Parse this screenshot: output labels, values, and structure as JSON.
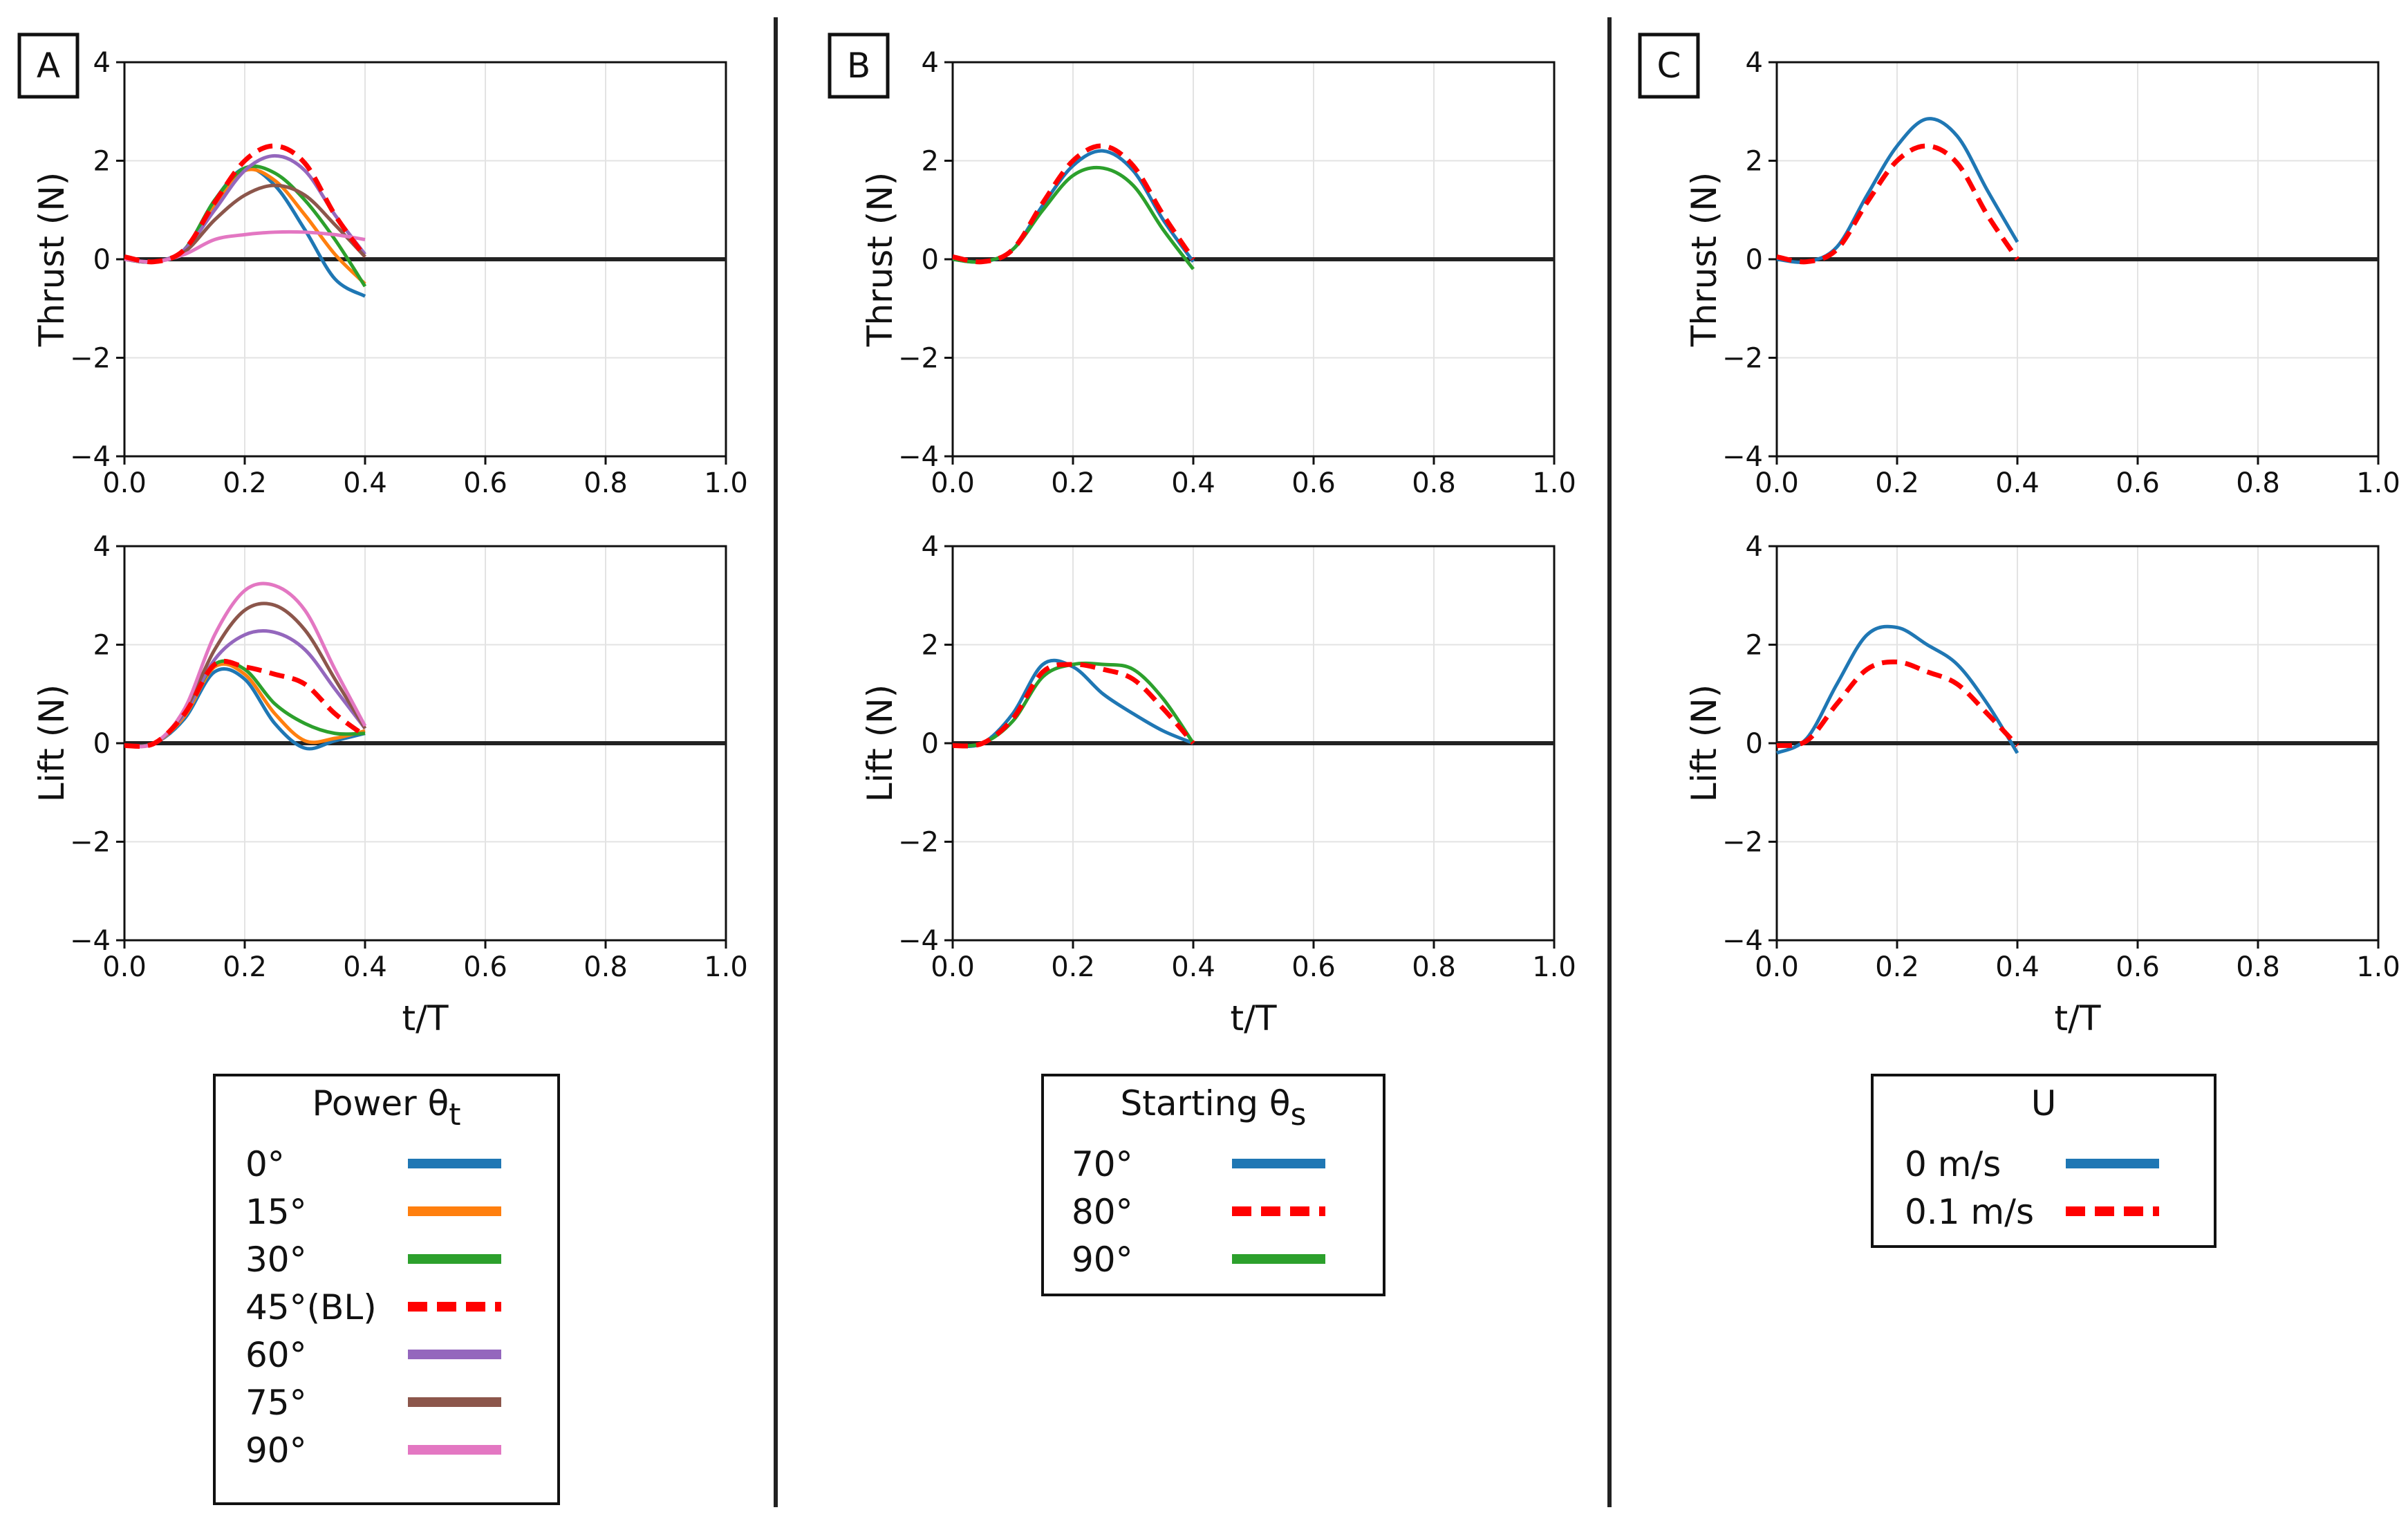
{
  "colors": {
    "blue": "#1f77b4",
    "orange": "#ff7f0e",
    "green": "#2ca02c",
    "red": "#ff0000",
    "purple": "#9467bd",
    "brown": "#8c564b",
    "pink": "#e377c2",
    "zero_line": "#222222",
    "grid": "#e3e3e3"
  },
  "chart_data": [
    {
      "panel": "A",
      "type": "line",
      "ylabel": "Thrust (N)",
      "xlabel": "",
      "xlim": [
        0,
        1
      ],
      "ylim": [
        -4,
        4
      ],
      "xticks": [
        "0.0",
        "0.2",
        "0.4",
        "0.6",
        "0.8",
        "1.0"
      ],
      "yticks": [
        "4",
        "2",
        "0",
        "−2",
        "−4"
      ],
      "series": [
        {
          "name": "0°",
          "color": "#1f77b4",
          "dashed": false,
          "x": [
            0,
            0.05,
            0.1,
            0.15,
            0.2,
            0.25,
            0.3,
            0.35,
            0.4
          ],
          "y": [
            0,
            -0.05,
            0.2,
            1.2,
            1.85,
            1.5,
            0.6,
            -0.4,
            -0.75
          ]
        },
        {
          "name": "15°",
          "color": "#ff7f0e",
          "dashed": false,
          "x": [
            0,
            0.05,
            0.1,
            0.15,
            0.2,
            0.25,
            0.3,
            0.35,
            0.4
          ],
          "y": [
            0,
            -0.05,
            0.2,
            1.1,
            1.8,
            1.6,
            0.9,
            0.1,
            -0.5
          ]
        },
        {
          "name": "30°",
          "color": "#2ca02c",
          "dashed": false,
          "x": [
            0,
            0.05,
            0.1,
            0.15,
            0.2,
            0.25,
            0.3,
            0.35,
            0.4
          ],
          "y": [
            0,
            -0.05,
            0.2,
            1.2,
            1.85,
            1.75,
            1.2,
            0.4,
            -0.55
          ]
        },
        {
          "name": "45°(BL)",
          "color": "#ff0000",
          "dashed": true,
          "x": [
            0,
            0.05,
            0.1,
            0.15,
            0.2,
            0.25,
            0.3,
            0.35,
            0.4
          ],
          "y": [
            0.05,
            -0.05,
            0.2,
            1.15,
            2.0,
            2.3,
            1.95,
            0.9,
            0.05
          ]
        },
        {
          "name": "60°",
          "color": "#9467bd",
          "dashed": false,
          "x": [
            0,
            0.05,
            0.1,
            0.15,
            0.2,
            0.25,
            0.3,
            0.35,
            0.4
          ],
          "y": [
            0,
            -0.05,
            0.2,
            1.0,
            1.8,
            2.1,
            1.8,
            0.9,
            0.1
          ]
        },
        {
          "name": "75°",
          "color": "#8c564b",
          "dashed": false,
          "x": [
            0,
            0.05,
            0.1,
            0.15,
            0.2,
            0.25,
            0.3,
            0.35,
            0.4
          ],
          "y": [
            0,
            -0.05,
            0.15,
            0.8,
            1.3,
            1.5,
            1.3,
            0.7,
            0.05
          ]
        },
        {
          "name": "90°",
          "color": "#e377c2",
          "dashed": false,
          "x": [
            0,
            0.05,
            0.1,
            0.15,
            0.2,
            0.25,
            0.3,
            0.35,
            0.4
          ],
          "y": [
            0,
            -0.05,
            0.1,
            0.4,
            0.5,
            0.55,
            0.55,
            0.5,
            0.4
          ]
        }
      ]
    },
    {
      "panel": "A",
      "type": "line",
      "ylabel": "Lift (N)",
      "xlabel": "t/T",
      "xlim": [
        0,
        1
      ],
      "ylim": [
        -4,
        4
      ],
      "xticks": [
        "0.0",
        "0.2",
        "0.4",
        "0.6",
        "0.8",
        "1.0"
      ],
      "yticks": [
        "4",
        "2",
        "0",
        "−2",
        "−4"
      ],
      "series": [
        {
          "name": "0°",
          "color": "#1f77b4",
          "dashed": false,
          "x": [
            0,
            0.05,
            0.1,
            0.15,
            0.2,
            0.25,
            0.3,
            0.35,
            0.4
          ],
          "y": [
            -0.05,
            0,
            0.5,
            1.45,
            1.3,
            0.4,
            -0.1,
            0.05,
            0.2
          ]
        },
        {
          "name": "15°",
          "color": "#ff7f0e",
          "dashed": false,
          "x": [
            0,
            0.05,
            0.1,
            0.15,
            0.2,
            0.25,
            0.3,
            0.35,
            0.4
          ],
          "y": [
            -0.05,
            0,
            0.55,
            1.55,
            1.4,
            0.6,
            0.05,
            0.1,
            0.25
          ]
        },
        {
          "name": "30°",
          "color": "#2ca02c",
          "dashed": false,
          "x": [
            0,
            0.05,
            0.1,
            0.15,
            0.2,
            0.25,
            0.3,
            0.35,
            0.4
          ],
          "y": [
            -0.05,
            0,
            0.6,
            1.6,
            1.5,
            0.8,
            0.4,
            0.2,
            0.2
          ]
        },
        {
          "name": "45°(BL)",
          "color": "#ff0000",
          "dashed": true,
          "x": [
            0,
            0.05,
            0.1,
            0.15,
            0.2,
            0.25,
            0.3,
            0.35,
            0.4
          ],
          "y": [
            -0.05,
            0,
            0.6,
            1.6,
            1.55,
            1.4,
            1.2,
            0.6,
            0.15
          ]
        },
        {
          "name": "60°",
          "color": "#9467bd",
          "dashed": false,
          "x": [
            0,
            0.05,
            0.1,
            0.15,
            0.2,
            0.25,
            0.3,
            0.35,
            0.4
          ],
          "y": [
            -0.05,
            0,
            0.6,
            1.7,
            2.2,
            2.25,
            1.9,
            1.1,
            0.3
          ]
        },
        {
          "name": "75°",
          "color": "#8c564b",
          "dashed": false,
          "x": [
            0,
            0.05,
            0.1,
            0.15,
            0.2,
            0.25,
            0.3,
            0.35,
            0.4
          ],
          "y": [
            -0.05,
            0,
            0.65,
            1.9,
            2.7,
            2.8,
            2.3,
            1.3,
            0.3
          ]
        },
        {
          "name": "90°",
          "color": "#e377c2",
          "dashed": false,
          "x": [
            0,
            0.05,
            0.1,
            0.15,
            0.2,
            0.25,
            0.3,
            0.35,
            0.4
          ],
          "y": [
            -0.05,
            0,
            0.7,
            2.2,
            3.1,
            3.2,
            2.7,
            1.5,
            0.35
          ]
        }
      ]
    },
    {
      "panel": "B",
      "type": "line",
      "ylabel": "Thrust (N)",
      "xlabel": "",
      "xlim": [
        0,
        1
      ],
      "ylim": [
        -4,
        4
      ],
      "xticks": [
        "0.0",
        "0.2",
        "0.4",
        "0.6",
        "0.8",
        "1.0"
      ],
      "yticks": [
        "4",
        "2",
        "0",
        "−2",
        "−4"
      ],
      "series": [
        {
          "name": "70°",
          "color": "#1f77b4",
          "dashed": false,
          "x": [
            0,
            0.05,
            0.1,
            0.15,
            0.2,
            0.25,
            0.3,
            0.35,
            0.4
          ],
          "y": [
            0,
            -0.05,
            0.2,
            1.1,
            1.9,
            2.2,
            1.8,
            0.8,
            -0.05
          ]
        },
        {
          "name": "80°",
          "color": "#ff0000",
          "dashed": true,
          "x": [
            0,
            0.05,
            0.1,
            0.15,
            0.2,
            0.25,
            0.3,
            0.35,
            0.4
          ],
          "y": [
            0.05,
            -0.05,
            0.2,
            1.15,
            2.0,
            2.3,
            1.9,
            0.9,
            0.0
          ]
        },
        {
          "name": "90°",
          "color": "#2ca02c",
          "dashed": false,
          "x": [
            0,
            0.05,
            0.1,
            0.15,
            0.2,
            0.25,
            0.3,
            0.35,
            0.4
          ],
          "y": [
            0,
            -0.05,
            0.2,
            1.0,
            1.7,
            1.85,
            1.5,
            0.6,
            -0.2
          ]
        }
      ]
    },
    {
      "panel": "B",
      "type": "line",
      "ylabel": "Lift (N)",
      "xlabel": "t/T",
      "xlim": [
        0,
        1
      ],
      "ylim": [
        -4,
        4
      ],
      "xticks": [
        "0.0",
        "0.2",
        "0.4",
        "0.6",
        "0.8",
        "1.0"
      ],
      "yticks": [
        "4",
        "2",
        "0",
        "−2",
        "−4"
      ],
      "series": [
        {
          "name": "70°",
          "color": "#1f77b4",
          "dashed": false,
          "x": [
            0,
            0.05,
            0.1,
            0.15,
            0.2,
            0.25,
            0.3,
            0.35,
            0.4
          ],
          "y": [
            -0.05,
            0,
            0.6,
            1.6,
            1.55,
            1.0,
            0.6,
            0.25,
            0.0
          ]
        },
        {
          "name": "80°",
          "color": "#ff0000",
          "dashed": true,
          "x": [
            0,
            0.05,
            0.1,
            0.15,
            0.2,
            0.25,
            0.3,
            0.35,
            0.4
          ],
          "y": [
            -0.05,
            0,
            0.5,
            1.45,
            1.6,
            1.5,
            1.3,
            0.7,
            0.0
          ]
        },
        {
          "name": "90°",
          "color": "#2ca02c",
          "dashed": false,
          "x": [
            0,
            0.05,
            0.1,
            0.15,
            0.2,
            0.25,
            0.3,
            0.35,
            0.4
          ],
          "y": [
            -0.05,
            0,
            0.45,
            1.35,
            1.6,
            1.6,
            1.5,
            0.9,
            0.0
          ]
        }
      ]
    },
    {
      "panel": "C",
      "type": "line",
      "ylabel": "Thrust (N)",
      "xlabel": "",
      "xlim": [
        0,
        1
      ],
      "ylim": [
        -4,
        4
      ],
      "xticks": [
        "0.0",
        "0.2",
        "0.4",
        "0.6",
        "0.8",
        "1.0"
      ],
      "yticks": [
        "4",
        "2",
        "0",
        "−2",
        "−4"
      ],
      "series": [
        {
          "name": "0 m/s",
          "color": "#1f77b4",
          "dashed": false,
          "x": [
            0,
            0.05,
            0.1,
            0.15,
            0.2,
            0.25,
            0.3,
            0.35,
            0.4
          ],
          "y": [
            0,
            -0.05,
            0.25,
            1.3,
            2.3,
            2.85,
            2.5,
            1.4,
            0.35
          ]
        },
        {
          "name": "0.1 m/s",
          "color": "#ff0000",
          "dashed": true,
          "x": [
            0,
            0.05,
            0.1,
            0.15,
            0.2,
            0.25,
            0.3,
            0.35,
            0.4
          ],
          "y": [
            0.05,
            -0.05,
            0.2,
            1.15,
            2.0,
            2.3,
            1.95,
            0.9,
            0.0
          ]
        }
      ]
    },
    {
      "panel": "C",
      "type": "line",
      "ylabel": "Lift (N)",
      "xlabel": "t/T",
      "xlim": [
        0,
        1
      ],
      "ylim": [
        -4,
        4
      ],
      "xticks": [
        "0.0",
        "0.2",
        "0.4",
        "0.6",
        "0.8",
        "1.0"
      ],
      "yticks": [
        "4",
        "2",
        "0",
        "−2",
        "−4"
      ],
      "series": [
        {
          "name": "0 m/s",
          "color": "#1f77b4",
          "dashed": false,
          "x": [
            0,
            0.05,
            0.1,
            0.15,
            0.2,
            0.25,
            0.3,
            0.35,
            0.4
          ],
          "y": [
            -0.2,
            0.1,
            1.2,
            2.2,
            2.35,
            2.0,
            1.6,
            0.8,
            -0.2
          ]
        },
        {
          "name": "0.1 m/s",
          "color": "#ff0000",
          "dashed": true,
          "x": [
            0,
            0.05,
            0.1,
            0.15,
            0.2,
            0.25,
            0.3,
            0.35,
            0.4
          ],
          "y": [
            -0.05,
            0.05,
            0.8,
            1.5,
            1.65,
            1.45,
            1.2,
            0.6,
            -0.05
          ]
        }
      ]
    }
  ],
  "panels": [
    {
      "label": "A"
    },
    {
      "label": "B"
    },
    {
      "label": "C"
    }
  ],
  "legends": [
    {
      "title": "Power θ",
      "subscript": "t",
      "entries": [
        {
          "label": "0°",
          "color": "#1f77b4",
          "dashed": false
        },
        {
          "label": "15°",
          "color": "#ff7f0e",
          "dashed": false
        },
        {
          "label": "30°",
          "color": "#2ca02c",
          "dashed": false
        },
        {
          "label": "45°(BL)",
          "color": "#ff0000",
          "dashed": true
        },
        {
          "label": "60°",
          "color": "#9467bd",
          "dashed": false
        },
        {
          "label": "75°",
          "color": "#8c564b",
          "dashed": false
        },
        {
          "label": "90°",
          "color": "#e377c2",
          "dashed": false
        }
      ]
    },
    {
      "title": "Starting θ",
      "subscript": "s",
      "entries": [
        {
          "label": "70°",
          "color": "#1f77b4",
          "dashed": false
        },
        {
          "label": "80°",
          "color": "#ff0000",
          "dashed": true
        },
        {
          "label": "90°",
          "color": "#2ca02c",
          "dashed": false
        }
      ]
    },
    {
      "title": "U",
      "subscript": "",
      "entries": [
        {
          "label": "0 m/s",
          "color": "#1f77b4",
          "dashed": false
        },
        {
          "label": "0.1 m/s",
          "color": "#ff0000",
          "dashed": true
        }
      ]
    }
  ]
}
